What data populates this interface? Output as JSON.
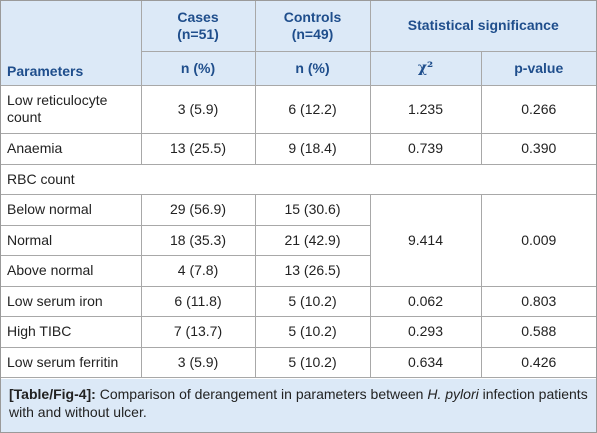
{
  "table": {
    "header": {
      "cases": "Cases",
      "cases_n": "(n=51)",
      "controls": "Controls",
      "controls_n": "(n=49)",
      "stat_sig": "Statistical significance",
      "parameters": "Parameters",
      "n_pct_cases": "n (%)",
      "n_pct_controls": "n (%)",
      "chi2": "χ²",
      "pvalue": "p-value"
    },
    "rows": [
      {
        "param": "Low reticulocyte count",
        "cases": "3 (5.9)",
        "controls": "6 (12.2)",
        "chi2": "1.235",
        "p": "0.266"
      },
      {
        "param": "Anaemia",
        "cases": "13 (25.5)",
        "controls": "9 (18.4)",
        "chi2": "0.739",
        "p": "0.390"
      },
      {
        "param": "RBC count"
      },
      {
        "param": "Below normal",
        "cases": "29 (56.9)",
        "controls": "15 (30.6)"
      },
      {
        "param": "Normal",
        "cases": "18 (35.3)",
        "controls": "21 (42.9)",
        "chi2": "9.414",
        "p": "0.009"
      },
      {
        "param": "Above normal",
        "cases": "4 (7.8)",
        "controls": "13 (26.5)"
      },
      {
        "param": "Low serum iron",
        "cases": "6 (11.8)",
        "controls": "5 (10.2)",
        "chi2": "0.062",
        "p": "0.803"
      },
      {
        "param": "High TIBC",
        "cases": "7 (13.7)",
        "controls": "5 (10.2)",
        "chi2": "0.293",
        "p": "0.588"
      },
      {
        "param": "Low serum ferritin",
        "cases": "3 (5.9)",
        "controls": "5 (10.2)",
        "chi2": "0.634",
        "p": "0.426"
      }
    ]
  },
  "caption": {
    "label": "[Table/Fig-4]:",
    "text_before": "Comparison of derangement in parameters between",
    "italic": "H. pylori",
    "text_after": "infection patients with and without ulcer."
  },
  "colors": {
    "header_bg": "#dce9f7",
    "header_text": "#1f4e8c",
    "border": "#a8a8a8"
  }
}
